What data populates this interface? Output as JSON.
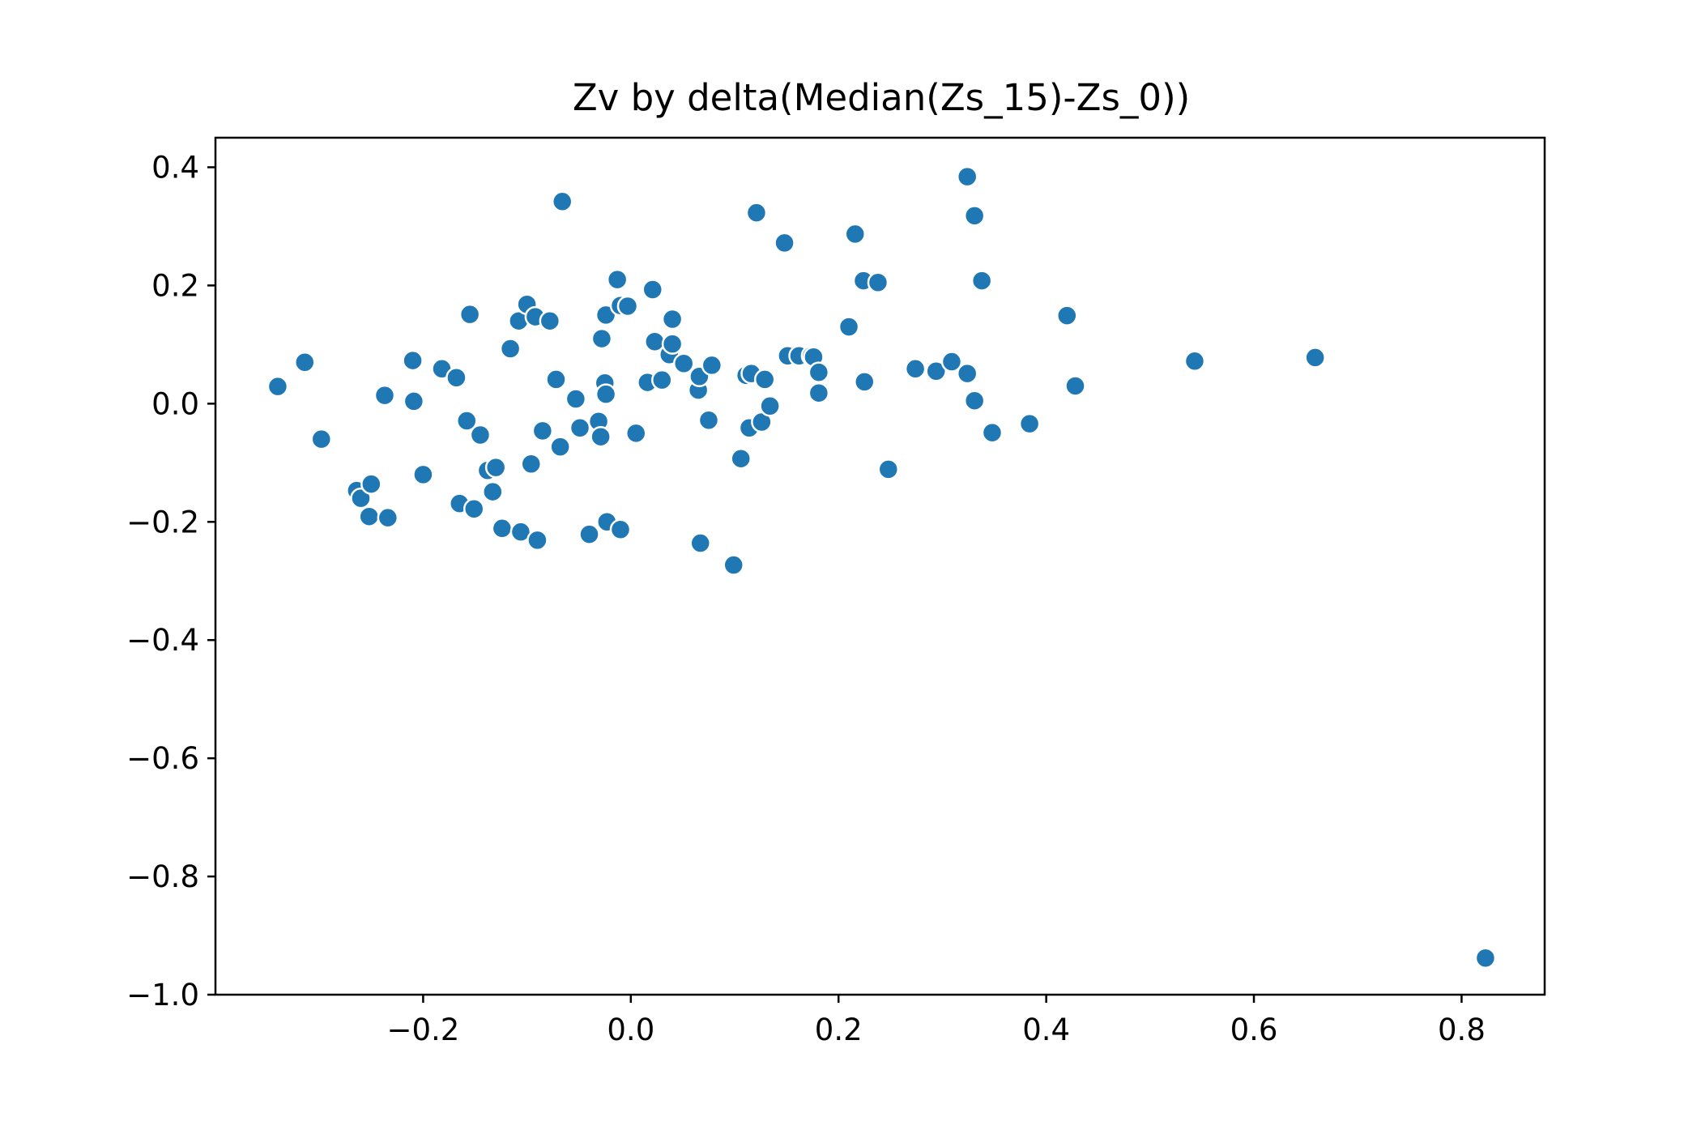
{
  "chart_data": {
    "type": "scatter",
    "title": "Zv by delta(Median(Zs_15)-Zs_0))",
    "xlabel": "",
    "ylabel": "",
    "xlim": [
      -0.4,
      0.88
    ],
    "ylim": [
      -1.0,
      0.45
    ],
    "grid": false,
    "colors": {
      "marker": "#1f77b4",
      "marker_edge": "#ffffff",
      "axes": "#000000"
    },
    "x_ticks": [
      {
        "value": -0.2,
        "label": "−0.2"
      },
      {
        "value": 0.0,
        "label": "0.0"
      },
      {
        "value": 0.2,
        "label": "0.2"
      },
      {
        "value": 0.4,
        "label": "0.4"
      },
      {
        "value": 0.6,
        "label": "0.6"
      },
      {
        "value": 0.8,
        "label": "0.8"
      }
    ],
    "y_ticks": [
      {
        "value": 0.4,
        "label": "0.4"
      },
      {
        "value": 0.2,
        "label": "0.2"
      },
      {
        "value": 0.0,
        "label": "0.0"
      },
      {
        "value": -0.2,
        "label": "−0.2"
      },
      {
        "value": -0.4,
        "label": "−0.4"
      },
      {
        "value": -0.6,
        "label": "−0.6"
      },
      {
        "value": -0.8,
        "label": "−0.8"
      },
      {
        "value": -1.0,
        "label": "−1.0"
      }
    ],
    "points": [
      {
        "x": -0.34,
        "y": 0.029
      },
      {
        "x": -0.314,
        "y": 0.07
      },
      {
        "x": -0.298,
        "y": -0.06
      },
      {
        "x": -0.264,
        "y": -0.147
      },
      {
        "x": -0.26,
        "y": -0.16
      },
      {
        "x": -0.25,
        "y": -0.136
      },
      {
        "x": -0.252,
        "y": -0.191
      },
      {
        "x": -0.234,
        "y": -0.193
      },
      {
        "x": -0.237,
        "y": 0.014
      },
      {
        "x": -0.21,
        "y": 0.073
      },
      {
        "x": -0.209,
        "y": 0.004
      },
      {
        "x": -0.2,
        "y": -0.12
      },
      {
        "x": -0.182,
        "y": 0.059
      },
      {
        "x": -0.168,
        "y": 0.044
      },
      {
        "x": -0.165,
        "y": -0.169
      },
      {
        "x": -0.158,
        "y": -0.029
      },
      {
        "x": -0.155,
        "y": 0.151
      },
      {
        "x": -0.151,
        "y": -0.178
      },
      {
        "x": -0.145,
        "y": -0.053
      },
      {
        "x": -0.138,
        "y": -0.113
      },
      {
        "x": -0.133,
        "y": -0.149
      },
      {
        "x": -0.13,
        "y": -0.108
      },
      {
        "x": -0.124,
        "y": -0.211
      },
      {
        "x": -0.116,
        "y": 0.093
      },
      {
        "x": -0.108,
        "y": 0.14
      },
      {
        "x": -0.106,
        "y": -0.217
      },
      {
        "x": -0.1,
        "y": 0.168
      },
      {
        "x": -0.096,
        "y": -0.102
      },
      {
        "x": -0.092,
        "y": 0.147
      },
      {
        "x": -0.09,
        "y": -0.231
      },
      {
        "x": -0.085,
        "y": -0.046
      },
      {
        "x": -0.078,
        "y": 0.14
      },
      {
        "x": -0.072,
        "y": 0.041
      },
      {
        "x": -0.068,
        "y": -0.073
      },
      {
        "x": -0.066,
        "y": 0.342
      },
      {
        "x": -0.053,
        "y": 0.008
      },
      {
        "x": -0.049,
        "y": -0.041
      },
      {
        "x": -0.04,
        "y": -0.221
      },
      {
        "x": -0.031,
        "y": -0.03
      },
      {
        "x": -0.029,
        "y": -0.056
      },
      {
        "x": -0.028,
        "y": 0.11
      },
      {
        "x": -0.025,
        "y": 0.035
      },
      {
        "x": -0.024,
        "y": 0.016
      },
      {
        "x": -0.024,
        "y": 0.15
      },
      {
        "x": -0.023,
        "y": -0.2
      },
      {
        "x": -0.013,
        "y": 0.21
      },
      {
        "x": -0.01,
        "y": -0.213
      },
      {
        "x": -0.01,
        "y": 0.166
      },
      {
        "x": -0.003,
        "y": 0.165
      },
      {
        "x": 0.005,
        "y": -0.05
      },
      {
        "x": 0.016,
        "y": 0.036
      },
      {
        "x": 0.021,
        "y": 0.193
      },
      {
        "x": 0.023,
        "y": 0.105
      },
      {
        "x": 0.03,
        "y": 0.04
      },
      {
        "x": 0.037,
        "y": 0.083
      },
      {
        "x": 0.04,
        "y": 0.101
      },
      {
        "x": 0.04,
        "y": 0.143
      },
      {
        "x": 0.051,
        "y": 0.068
      },
      {
        "x": 0.065,
        "y": 0.023
      },
      {
        "x": 0.066,
        "y": 0.046
      },
      {
        "x": 0.067,
        "y": -0.236
      },
      {
        "x": 0.075,
        "y": -0.028
      },
      {
        "x": 0.078,
        "y": 0.065
      },
      {
        "x": 0.099,
        "y": -0.273
      },
      {
        "x": 0.106,
        "y": -0.093
      },
      {
        "x": 0.111,
        "y": 0.048
      },
      {
        "x": 0.114,
        "y": -0.041
      },
      {
        "x": 0.116,
        "y": 0.051
      },
      {
        "x": 0.121,
        "y": 0.323
      },
      {
        "x": 0.126,
        "y": -0.031
      },
      {
        "x": 0.129,
        "y": 0.041
      },
      {
        "x": 0.134,
        "y": -0.004
      },
      {
        "x": 0.148,
        "y": 0.272
      },
      {
        "x": 0.151,
        "y": 0.081
      },
      {
        "x": 0.162,
        "y": 0.081
      },
      {
        "x": 0.174,
        "y": 0.081
      },
      {
        "x": 0.176,
        "y": 0.079
      },
      {
        "x": 0.181,
        "y": 0.053
      },
      {
        "x": 0.181,
        "y": 0.018
      },
      {
        "x": 0.21,
        "y": 0.13
      },
      {
        "x": 0.216,
        "y": 0.287
      },
      {
        "x": 0.224,
        "y": 0.208
      },
      {
        "x": 0.225,
        "y": 0.037
      },
      {
        "x": 0.238,
        "y": 0.205
      },
      {
        "x": 0.248,
        "y": -0.111
      },
      {
        "x": 0.274,
        "y": 0.059
      },
      {
        "x": 0.294,
        "y": 0.055
      },
      {
        "x": 0.309,
        "y": 0.071
      },
      {
        "x": 0.324,
        "y": 0.384
      },
      {
        "x": 0.324,
        "y": 0.051
      },
      {
        "x": 0.331,
        "y": 0.318
      },
      {
        "x": 0.331,
        "y": 0.005
      },
      {
        "x": 0.338,
        "y": 0.208
      },
      {
        "x": 0.348,
        "y": -0.049
      },
      {
        "x": 0.384,
        "y": -0.034
      },
      {
        "x": 0.42,
        "y": 0.149
      },
      {
        "x": 0.428,
        "y": 0.03
      },
      {
        "x": 0.543,
        "y": 0.072
      },
      {
        "x": 0.659,
        "y": 0.078
      },
      {
        "x": 0.823,
        "y": -0.938
      }
    ]
  }
}
